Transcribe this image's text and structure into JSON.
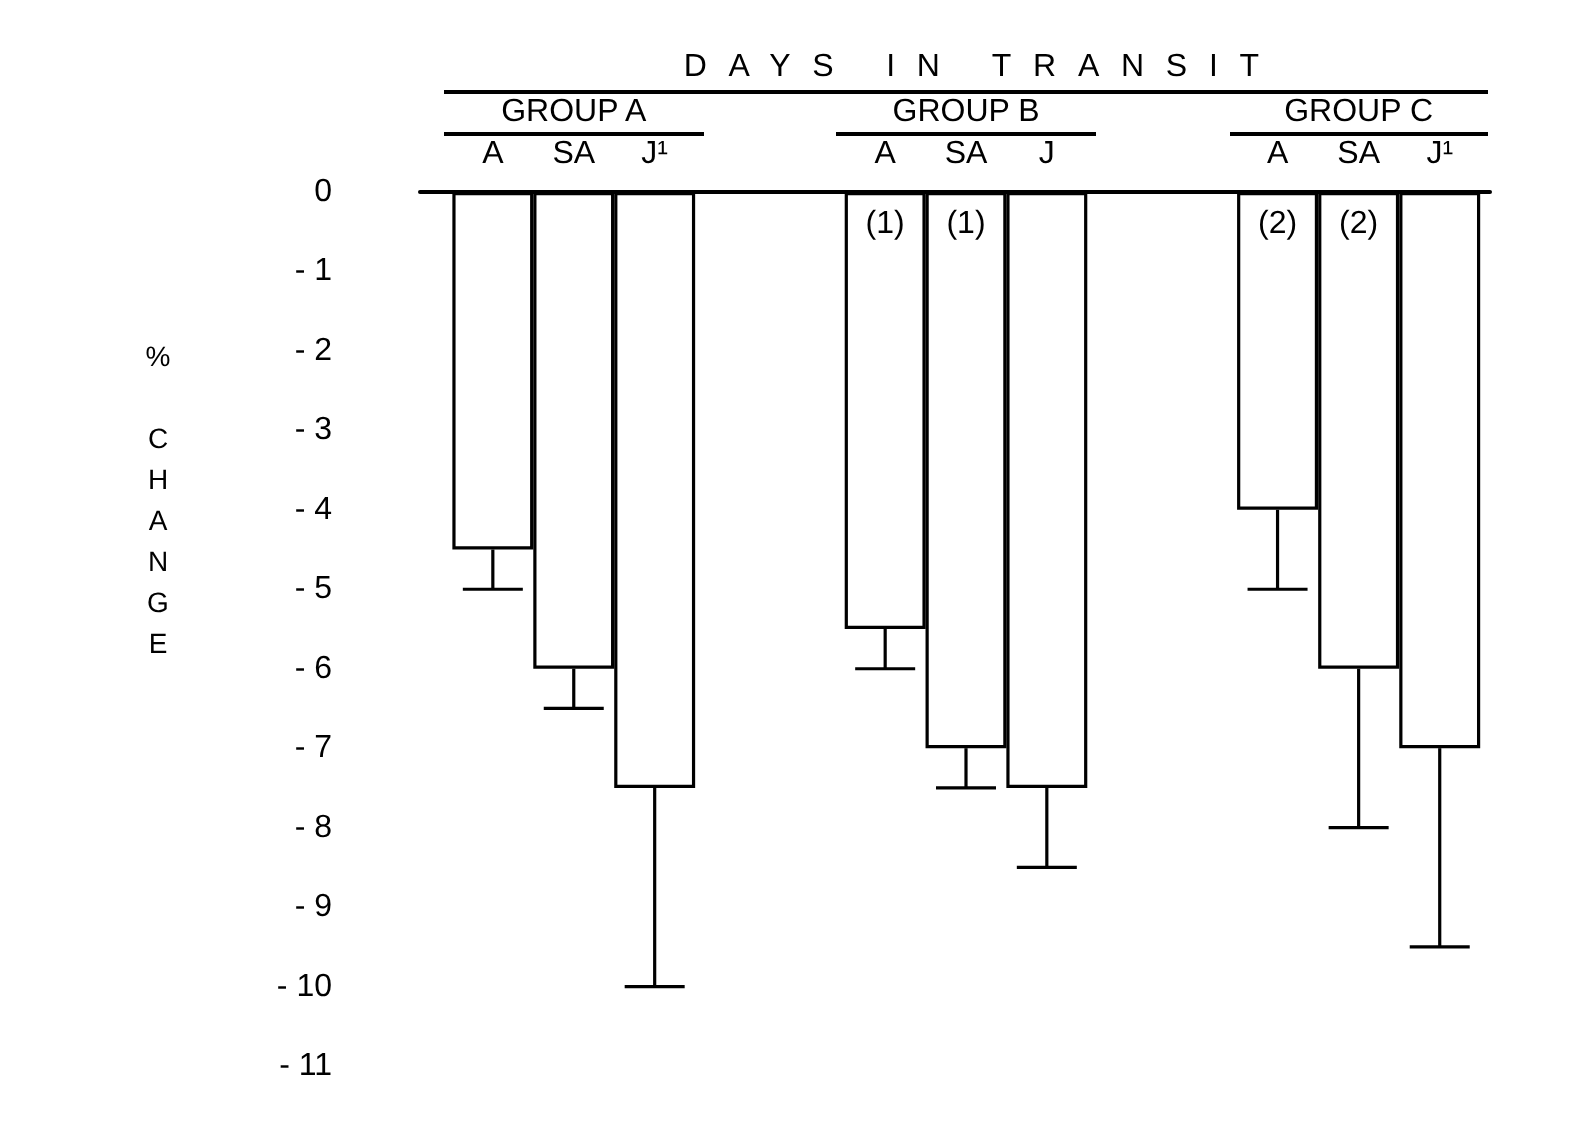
{
  "chart_data": [
    {
      "type": "other",
      "title": "DAYS IN TRANSIT"
    },
    {
      "type": "bar",
      "title": "GROUP A",
      "ylabel": "% CHANGE",
      "categories": [
        "A",
        "SA",
        "J¹"
      ],
      "values": [
        -4.5,
        -6,
        -7.5
      ],
      "errors": [
        [
          -5,
          -4.5
        ],
        [
          -6.5,
          -6
        ],
        [
          -10,
          -7.5
        ]
      ],
      "color": "#ffffff",
      "ylim": [
        -11,
        0
      ],
      "yticks": [
        0,
        {
          "value": -1,
          "label": "- 1"
        },
        {
          "value": -2,
          "label": "- 2"
        },
        {
          "value": -3,
          "label": "- 3"
        },
        {
          "value": -4,
          "label": "- 4"
        },
        {
          "value": -5,
          "label": "- 5"
        },
        {
          "value": -6,
          "label": "- 6"
        },
        {
          "value": -7,
          "label": "- 7"
        },
        {
          "value": -8,
          "label": "- 8"
        },
        {
          "value": -9,
          "label": "- 9"
        },
        {
          "value": -10,
          "label": "- 10"
        },
        {
          "value": -11,
          "label": "- 11"
        }
      ]
    },
    {
      "type": "bar",
      "title": "GROUP B",
      "categories": [
        "A",
        "SA",
        "J"
      ],
      "values": [
        -5.5,
        -7,
        -7.5
      ],
      "errors": [
        [
          -6,
          -5.5
        ],
        [
          -7.5,
          -7
        ],
        [
          -8.5,
          -7.5
        ]
      ],
      "color": "#ffffff",
      "ylim": [
        -11,
        0
      ],
      "tick_labels": "x",
      "annotations": [
        "(1)",
        "(1)"
      ]
    },
    {
      "type": "bar",
      "title": "GROUP C",
      "categories": [
        "A",
        "SA",
        "J¹"
      ],
      "values": [
        -4,
        -6,
        -7
      ],
      "errors": [
        [
          -5,
          -4
        ],
        [
          -8,
          -6
        ],
        [
          -9.5,
          -7
        ]
      ],
      "color": "#ffffff",
      "ylim": [
        -11,
        0
      ],
      "tick_labels": "x",
      "annotations": [
        "(2)",
        "(2)"
      ]
    }
  ]
}
